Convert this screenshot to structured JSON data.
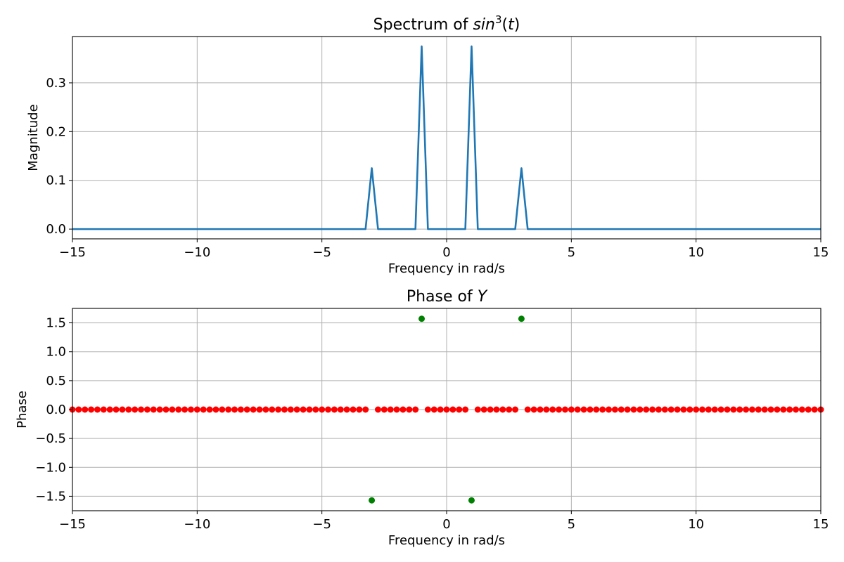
{
  "chart_data": [
    {
      "type": "line",
      "title_prefix": "Spectrum of ",
      "title_math": "sin",
      "title_math_sup": "3",
      "title_suffix": "(t)",
      "xlabel": "Frequency in rad/s",
      "ylabel": "Magnitude",
      "xlim": [
        -15,
        15
      ],
      "ylim": [
        -0.02,
        0.395
      ],
      "xticks": [
        -15,
        -10,
        -5,
        0,
        5,
        10,
        15
      ],
      "xtick_labels": [
        "−15",
        "−10",
        "−5",
        "0",
        "5",
        "10",
        "15"
      ],
      "yticks": [
        0.0,
        0.1,
        0.2,
        0.3
      ],
      "ytick_labels": [
        "0.0",
        "0.1",
        "0.2",
        "0.3"
      ],
      "grid": true,
      "series": [
        {
          "color": "#1f77b4",
          "x": [
            -15,
            -3.25,
            -3.0,
            -2.75,
            -1.25,
            -1.0,
            -0.75,
            0.75,
            1.0,
            1.25,
            2.75,
            3.0,
            3.25,
            15
          ],
          "y": [
            0,
            0,
            0.125,
            0,
            0,
            0.375,
            0,
            0,
            0.375,
            0,
            0,
            0.125,
            0,
            0
          ]
        }
      ]
    },
    {
      "type": "scatter",
      "title_prefix": "Phase of ",
      "title_math": "Y",
      "xlabel": "Frequency in rad/s",
      "ylabel": "Phase",
      "xlim": [
        -15,
        15
      ],
      "ylim": [
        -1.75,
        1.75
      ],
      "xticks": [
        -15,
        -10,
        -5,
        0,
        5,
        10,
        15
      ],
      "xtick_labels": [
        "−15",
        "−10",
        "−5",
        "0",
        "5",
        "10",
        "15"
      ],
      "yticks": [
        -1.5,
        -1.0,
        -0.5,
        0.0,
        0.5,
        1.0,
        1.5
      ],
      "ytick_labels": [
        "−1.5",
        "−1.0",
        "−0.5",
        "0.0",
        "0.5",
        "1.0",
        "1.5"
      ],
      "grid": true,
      "series": [
        {
          "color": "#ff0000",
          "x_start": -15,
          "x_end": 15,
          "x_step": 0.25,
          "y": 0,
          "missing_x": [
            -3.0,
            -1.0,
            1.0,
            3.0
          ]
        },
        {
          "color": "#008000",
          "x": [
            -3.0,
            -1.0,
            1.0,
            3.0
          ],
          "y": [
            -1.5708,
            1.5708,
            -1.5708,
            1.5708
          ]
        }
      ]
    }
  ]
}
